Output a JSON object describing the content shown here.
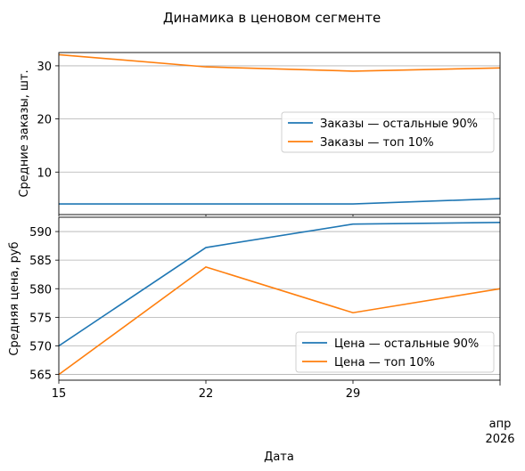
{
  "figure": {
    "title": "Динамика в ценовом сегменте",
    "xlabel": "Дата",
    "month_label": "апр",
    "year_label": "2026"
  },
  "colors": {
    "series_blue": "#1f77b4",
    "series_orange": "#ff7f0e",
    "grid": "#b0b0b0",
    "axis": "#000000"
  },
  "chart_data": [
    {
      "type": "line",
      "ylabel": "Средние заказы, шт.",
      "x": [
        "2026-04-15",
        "2026-04-22",
        "2026-04-29",
        "2026-05-06"
      ],
      "xticks": [
        "15",
        "22",
        "29"
      ],
      "xlim": [
        "2026-04-15",
        "2026-05-06"
      ],
      "ylim": [
        2.0,
        32.5
      ],
      "yticks": [
        10,
        20,
        30
      ],
      "grid": "y",
      "legend": "center-right",
      "series": [
        {
          "name": "Заказы — остальные 90%",
          "values": [
            4.0,
            4.0,
            4.0,
            5.0
          ]
        },
        {
          "name": "Заказы — топ 10%",
          "values": [
            32.1,
            29.8,
            29.0,
            29.6
          ]
        }
      ]
    },
    {
      "type": "line",
      "ylabel": "Средняя цена, руб",
      "x": [
        "2026-04-15",
        "2026-04-22",
        "2026-04-29",
        "2026-05-06"
      ],
      "xticks": [
        "15",
        "22",
        "29"
      ],
      "xlim": [
        "2026-04-15",
        "2026-05-06"
      ],
      "ylim": [
        564.0,
        592.5
      ],
      "yticks": [
        565,
        570,
        575,
        580,
        585,
        590
      ],
      "grid": "y",
      "legend": "lower-right",
      "series": [
        {
          "name": "Цена — остальные 90%",
          "values": [
            570.0,
            587.2,
            591.3,
            591.6
          ]
        },
        {
          "name": "Цена — топ 10%",
          "values": [
            565.0,
            583.8,
            575.8,
            580.0
          ]
        }
      ]
    }
  ]
}
